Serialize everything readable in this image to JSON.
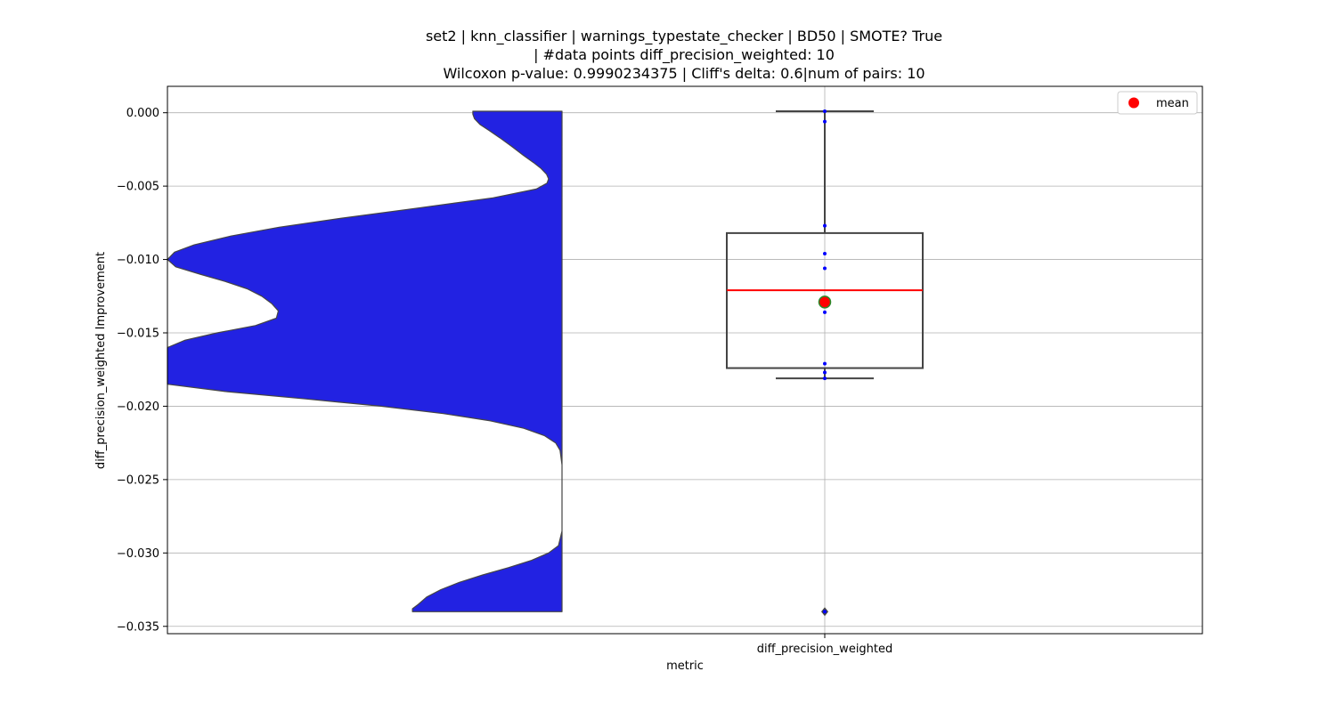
{
  "chart_data": {
    "type": "violin+box",
    "title_lines": [
      "set2 | knn_classifier | warnings_typestate_checker | BD50 | SMOTE? True",
      "| #data points diff_precision_weighted: 10",
      "Wilcoxon p-value: 0.9990234375 | Cliff's delta: 0.6|num of pairs: 10"
    ],
    "xlabel": "metric",
    "ylabel": "diff_precision_weighted Improvement",
    "categories": [
      "diff_precision_weighted"
    ],
    "ylim": [
      -0.0355,
      0.0018
    ],
    "yticks": [
      0.0,
      -0.005,
      -0.01,
      -0.015,
      -0.02,
      -0.025,
      -0.03,
      -0.035
    ],
    "ytick_labels": [
      "0.000",
      "−0.005",
      "−0.010",
      "−0.015",
      "−0.020",
      "−0.025",
      "−0.030",
      "−0.035"
    ],
    "grid": true,
    "violin": {
      "color": "#2222e2",
      "edge_color": "#444444",
      "side": "left half",
      "profile": [
        {
          "y": 0.0001,
          "density": 0.226
        },
        {
          "y": -0.0001,
          "density": 0.226
        },
        {
          "y": -0.0004,
          "density": 0.222
        },
        {
          "y": -0.0008,
          "density": 0.208
        },
        {
          "y": -0.0012,
          "density": 0.185
        },
        {
          "y": -0.0017,
          "density": 0.158
        },
        {
          "y": -0.0023,
          "density": 0.127
        },
        {
          "y": -0.0029,
          "density": 0.098
        },
        {
          "y": -0.0034,
          "density": 0.072
        },
        {
          "y": -0.0038,
          "density": 0.053
        },
        {
          "y": -0.0042,
          "density": 0.039
        },
        {
          "y": -0.0045,
          "density": 0.034
        },
        {
          "y": -0.0048,
          "density": 0.038
        },
        {
          "y": -0.0052,
          "density": 0.065
        },
        {
          "y": -0.0058,
          "density": 0.175
        },
        {
          "y": -0.0065,
          "density": 0.366
        },
        {
          "y": -0.0072,
          "density": 0.562
        },
        {
          "y": -0.0078,
          "density": 0.717
        },
        {
          "y": -0.0084,
          "density": 0.839
        },
        {
          "y": -0.009,
          "density": 0.932
        },
        {
          "y": -0.0095,
          "density": 0.982
        },
        {
          "y": -0.01,
          "density": 1.0
        },
        {
          "y": -0.0105,
          "density": 0.979
        },
        {
          "y": -0.011,
          "density": 0.918
        },
        {
          "y": -0.0115,
          "density": 0.853
        },
        {
          "y": -0.012,
          "density": 0.798
        },
        {
          "y": -0.0125,
          "density": 0.761
        },
        {
          "y": -0.013,
          "density": 0.736
        },
        {
          "y": -0.0135,
          "density": 0.719
        },
        {
          "y": -0.014,
          "density": 0.724
        },
        {
          "y": -0.0145,
          "density": 0.777
        },
        {
          "y": -0.015,
          "density": 0.874
        },
        {
          "y": -0.0155,
          "density": 0.955
        },
        {
          "y": -0.016,
          "density": 1.0
        },
        {
          "y": -0.0185,
          "density": 1.0
        },
        {
          "y": -0.019,
          "density": 0.853
        },
        {
          "y": -0.0195,
          "density": 0.65
        },
        {
          "y": -0.02,
          "density": 0.459
        },
        {
          "y": -0.0205,
          "density": 0.301
        },
        {
          "y": -0.021,
          "density": 0.181
        },
        {
          "y": -0.0215,
          "density": 0.097
        },
        {
          "y": -0.022,
          "density": 0.045
        },
        {
          "y": -0.0225,
          "density": 0.016
        },
        {
          "y": -0.023,
          "density": 0.005
        },
        {
          "y": -0.024,
          "density": 0.0
        },
        {
          "y": -0.0285,
          "density": 0.0
        },
        {
          "y": -0.0295,
          "density": 0.009
        },
        {
          "y": -0.03,
          "density": 0.034
        },
        {
          "y": -0.0305,
          "density": 0.077
        },
        {
          "y": -0.031,
          "density": 0.136
        },
        {
          "y": -0.0315,
          "density": 0.201
        },
        {
          "y": -0.032,
          "density": 0.26
        },
        {
          "y": -0.0325,
          "density": 0.307
        },
        {
          "y": -0.033,
          "density": 0.343
        },
        {
          "y": -0.0335,
          "density": 0.364
        },
        {
          "y": -0.0338,
          "density": 0.379
        },
        {
          "y": -0.034,
          "density": 0.379
        }
      ]
    },
    "box": {
      "q1": -0.0174,
      "median": -0.0121,
      "q3": -0.0082,
      "whisker_low": -0.0181,
      "whisker_high": 0.0001,
      "median_color": "#ff0000",
      "edge_color": "#444444"
    },
    "outliers": [
      -0.034
    ],
    "points": [
      -0.0006,
      -0.0077,
      -0.0096,
      -0.0106,
      -0.0136,
      -0.0171,
      -0.0177,
      -0.0181,
      0.0001,
      -0.034
    ],
    "point_color": "#0000ff",
    "mean": {
      "value": -0.0129,
      "color": "#ff0000",
      "edge_color": "#2a8a2a"
    },
    "legend": {
      "labels": [
        "mean"
      ],
      "placement": "top-right"
    }
  }
}
